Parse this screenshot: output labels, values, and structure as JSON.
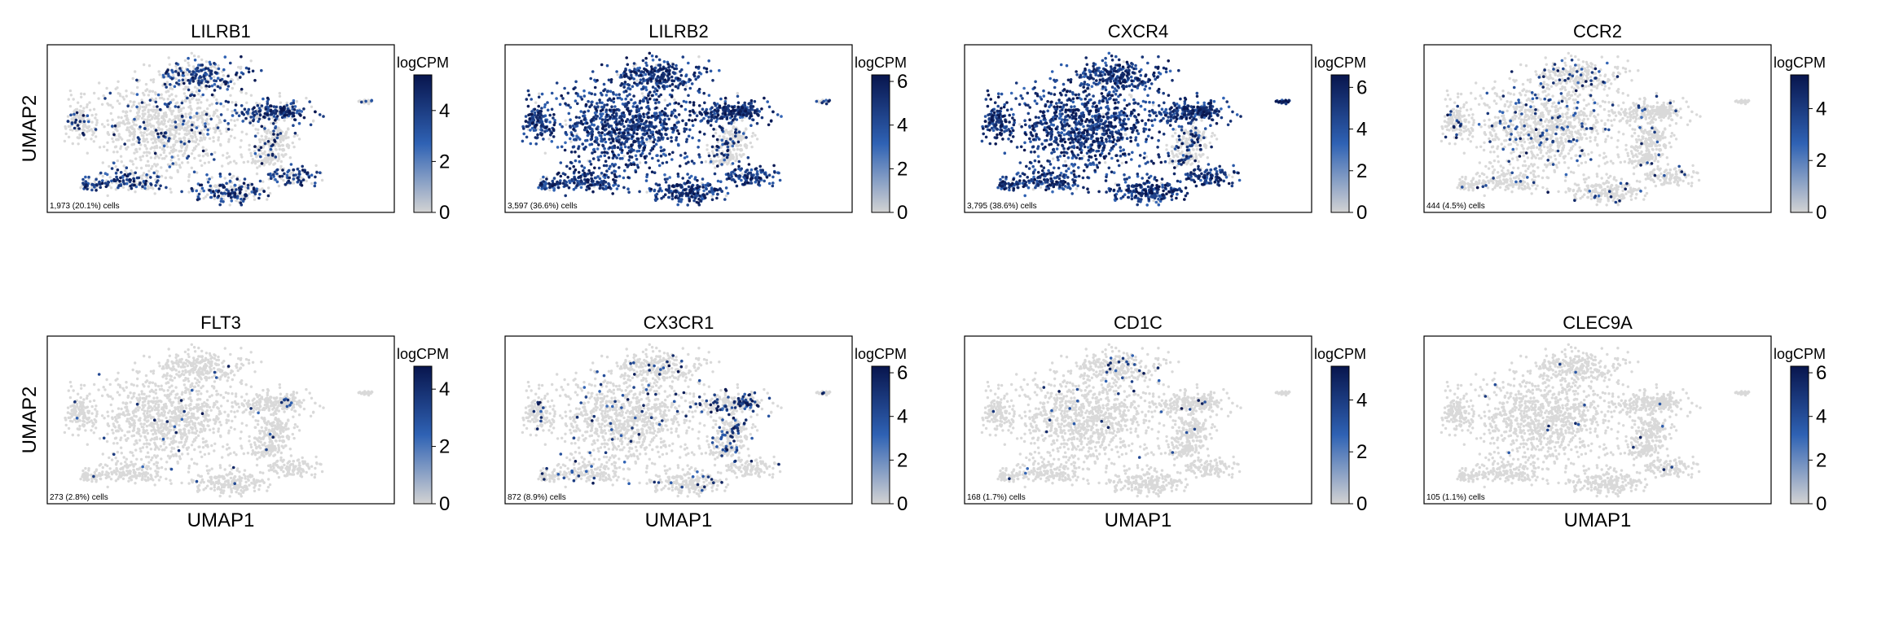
{
  "figure": {
    "y_axis_label": "UMAP2",
    "x_axis_label": "UMAP1",
    "colorbar_label": "logCPM"
  },
  "colors": {
    "background_cells": "#d9d9d9",
    "cmap_low": "#d3d3d3",
    "cmap_mid": "#2f62b4",
    "cmap_high": "#08154d",
    "frame": "#000000"
  },
  "chart_data": [
    {
      "type": "scatter",
      "title": "LILRB1",
      "cell_count_label": "1,973 (20.1%) cells",
      "expressing_cells": 1973,
      "expressing_pct": 20.1,
      "colorbar": {
        "min": 0,
        "max": 5.4,
        "ticks": [
          0,
          2,
          4
        ]
      },
      "xlabel": "",
      "ylabel": "UMAP2",
      "hotspots": [
        "upper-right cluster",
        "right arm",
        "lower clusters"
      ]
    },
    {
      "type": "scatter",
      "title": "LILRB2",
      "cell_count_label": "3,597 (36.6%) cells",
      "expressing_cells": 3597,
      "expressing_pct": 36.6,
      "colorbar": {
        "min": 0,
        "max": 6.3,
        "ticks": [
          0,
          2,
          4,
          6
        ]
      },
      "xlabel": "",
      "ylabel": "",
      "hotspots": [
        "main cloud",
        "right arm",
        "lower clusters"
      ]
    },
    {
      "type": "scatter",
      "title": "CXCR4",
      "cell_count_label": "3,795 (38.6%) cells",
      "expressing_cells": 3795,
      "expressing_pct": 38.6,
      "colorbar": {
        "min": 0,
        "max": 6.6,
        "ticks": [
          0,
          2,
          4,
          6
        ]
      },
      "xlabel": "",
      "ylabel": "",
      "hotspots": [
        "main cloud",
        "right arm",
        "far-right island",
        "lower clusters"
      ]
    },
    {
      "type": "scatter",
      "title": "CCR2",
      "cell_count_label": "444 (4.5%) cells",
      "expressing_cells": 444,
      "expressing_pct": 4.5,
      "colorbar": {
        "min": 0,
        "max": 5.3,
        "ticks": [
          0,
          2,
          4
        ]
      },
      "xlabel": "",
      "ylabel": "",
      "hotspots": [
        "main cloud"
      ]
    },
    {
      "type": "scatter",
      "title": "FLT3",
      "cell_count_label": "273 (2.8%) cells",
      "expressing_cells": 273,
      "expressing_pct": 2.8,
      "colorbar": {
        "min": 0,
        "max": 4.8,
        "ticks": [
          0,
          2,
          4
        ]
      },
      "xlabel": "UMAP1",
      "ylabel": "UMAP2",
      "hotspots": [
        "right arm tip"
      ]
    },
    {
      "type": "scatter",
      "title": "CX3CR1",
      "cell_count_label": "872 (8.9%) cells",
      "expressing_cells": 872,
      "expressing_pct": 8.9,
      "colorbar": {
        "min": 0,
        "max": 6.3,
        "ticks": [
          0,
          2,
          4,
          6
        ]
      },
      "xlabel": "UMAP1",
      "ylabel": "",
      "hotspots": [
        "right arm",
        "lower-right lobe"
      ]
    },
    {
      "type": "scatter",
      "title": "CD1C",
      "cell_count_label": "168 (1.7%) cells",
      "expressing_cells": 168,
      "expressing_pct": 1.7,
      "colorbar": {
        "min": 0,
        "max": 5.3,
        "ticks": [
          0,
          2,
          4
        ]
      },
      "xlabel": "UMAP1",
      "ylabel": "",
      "hotspots": [
        "upper-right arm"
      ]
    },
    {
      "type": "scatter",
      "title": "CLEC9A",
      "cell_count_label": "105 (1.1%) cells",
      "expressing_cells": 105,
      "expressing_pct": 1.1,
      "colorbar": {
        "min": 0,
        "max": 6.3,
        "ticks": [
          0,
          2,
          4,
          6
        ]
      },
      "xlabel": "UMAP1",
      "ylabel": "",
      "hotspots": [
        "right arm tip"
      ]
    }
  ]
}
